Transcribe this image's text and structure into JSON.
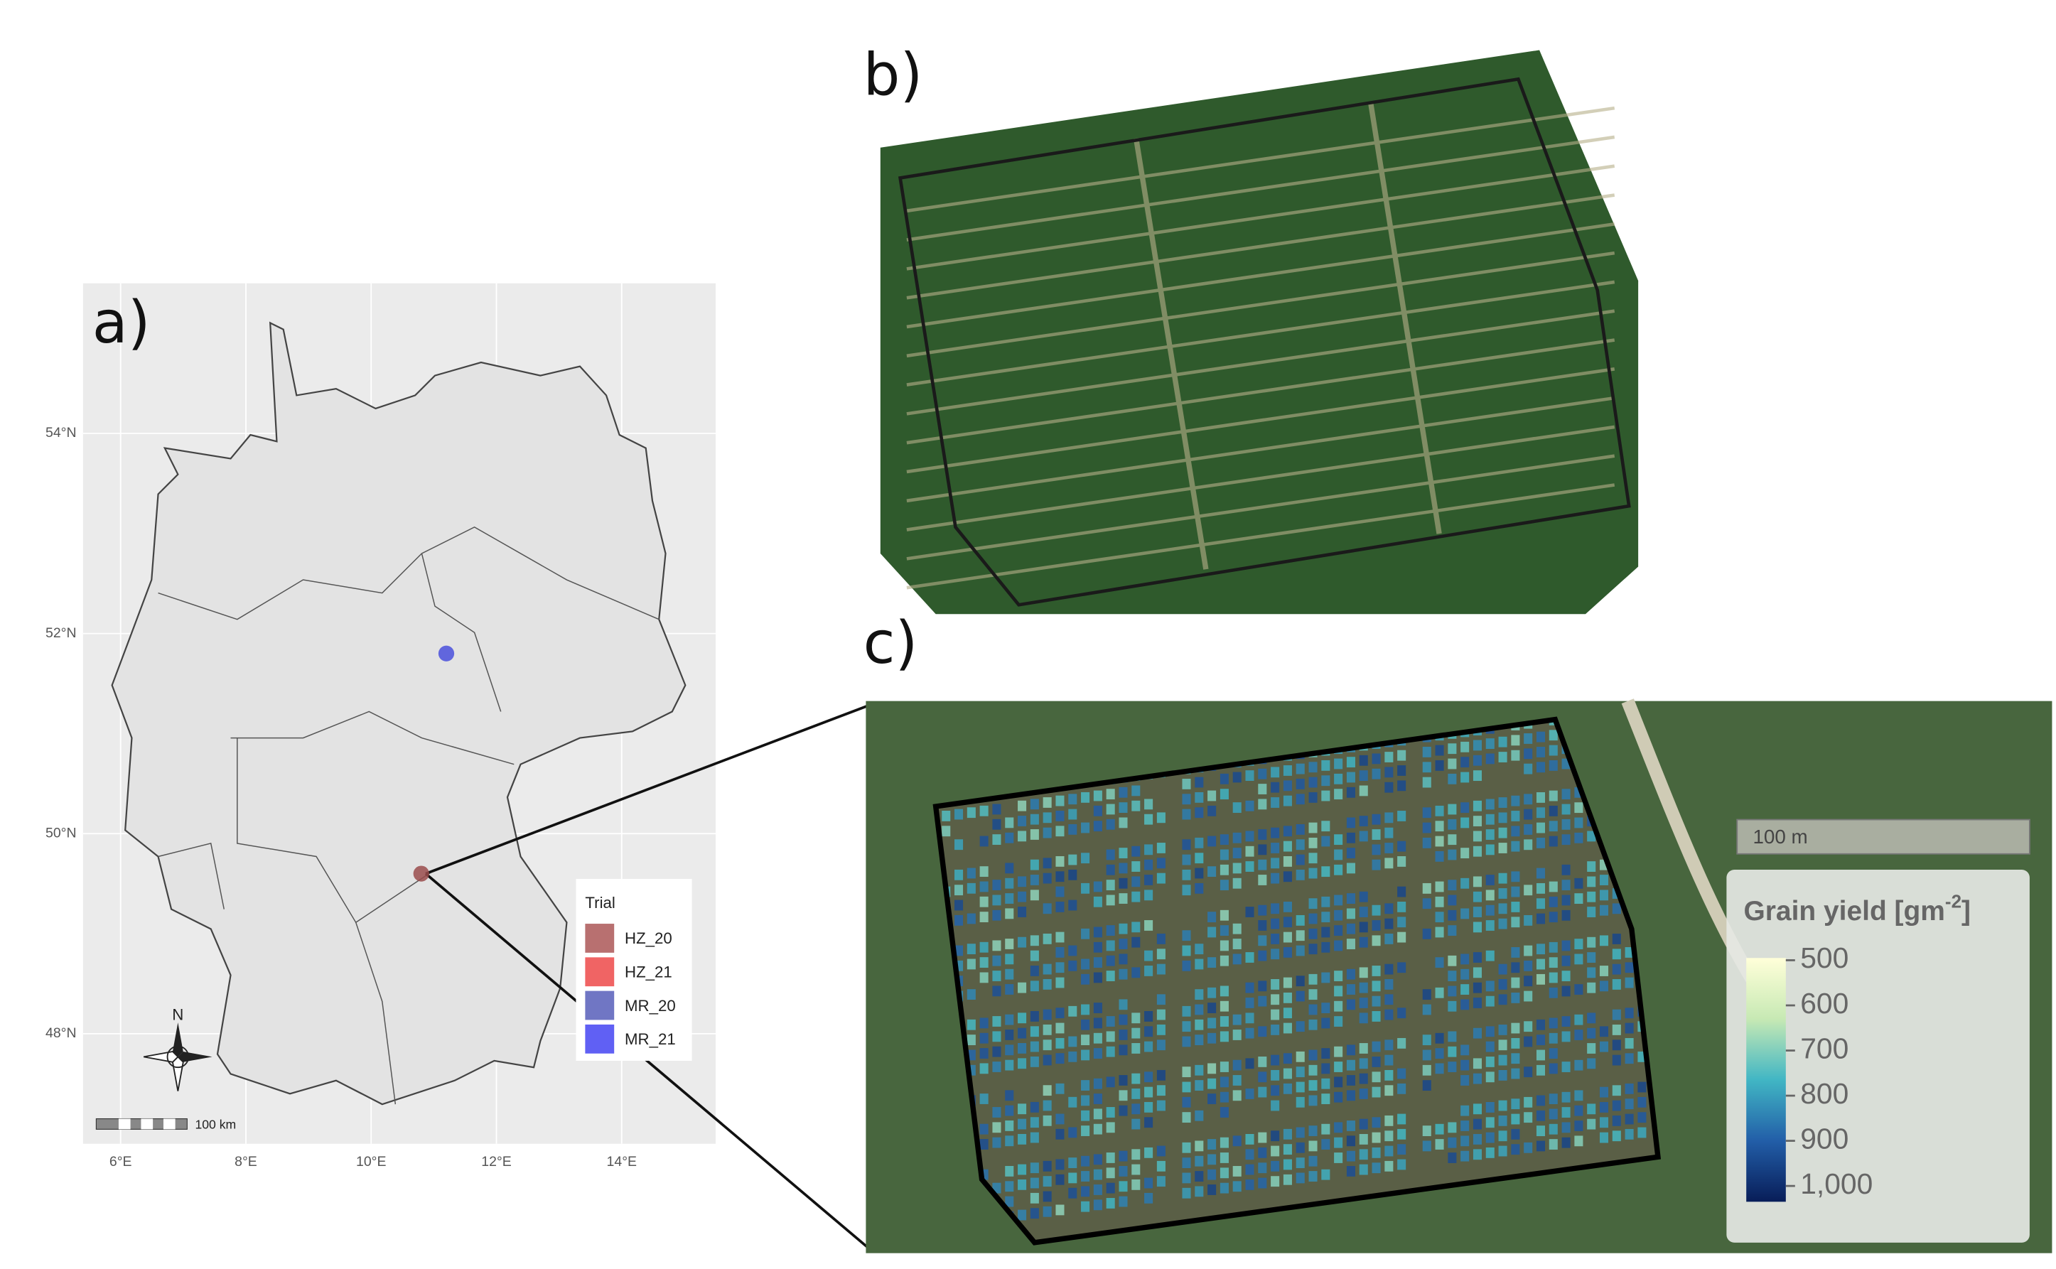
{
  "panels": {
    "a": "a)",
    "b": "b)",
    "c": "c)"
  },
  "map": {
    "xlim": [
      5.4,
      15.5
    ],
    "ylim": [
      46.9,
      55.5
    ],
    "yticks": [
      {
        "value": 54,
        "label": "54°N"
      },
      {
        "value": 52,
        "label": "52°N"
      },
      {
        "value": 50,
        "label": "50°N"
      },
      {
        "value": 48,
        "label": "48°N"
      }
    ],
    "xticks": [
      {
        "value": 6,
        "label": "6°E"
      },
      {
        "value": 8,
        "label": "8°E"
      },
      {
        "value": 10,
        "label": "10°E"
      },
      {
        "value": 12,
        "label": "12°E"
      },
      {
        "value": 14,
        "label": "14°E"
      }
    ],
    "north": "N",
    "scale": "100 km",
    "legend": {
      "title": "Trial",
      "entries": [
        {
          "name": "HZ_20",
          "color": "#b87070"
        },
        {
          "name": "HZ_21",
          "color": "#f06464"
        },
        {
          "name": "MR_20",
          "color": "#7076c4"
        },
        {
          "name": "MR_21",
          "color": "#6060f4"
        }
      ]
    },
    "points": [
      {
        "lon": 11.2,
        "lat": 51.8,
        "color": "#4a50dc"
      },
      {
        "lon": 10.8,
        "lat": 49.6,
        "color": "#9a4c4c"
      }
    ]
  },
  "inset": {
    "scale": "100 m",
    "colorbar": {
      "title": [
        "Grain yield [gm",
        "-2",
        "]"
      ],
      "lim": [
        495,
        1035
      ],
      "ticks": [
        500,
        600,
        700,
        800,
        900,
        {
          "value": 1000,
          "label": "1,000"
        }
      ],
      "colors": [
        "#ffffd9",
        "#c7e9b4",
        "#41b6c4",
        "#225ea8",
        "#081d58"
      ]
    }
  }
}
